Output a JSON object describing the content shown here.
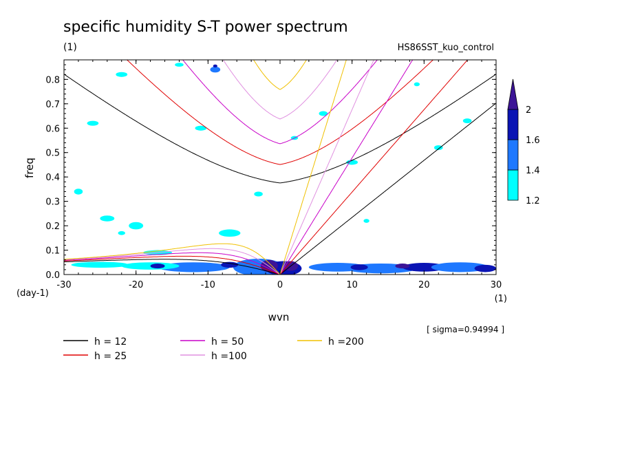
{
  "chart_data": {
    "type": "heatmap",
    "title": "specific humidity S-T power spectrum",
    "subtitle_left": "(1)",
    "subtitle_right": "HS86SST_kuo_control",
    "xlabel": "wvn",
    "ylabel": "freq",
    "x_unit": "(1)",
    "y_unit": "(day-1)",
    "xlim": [
      -30,
      30
    ],
    "ylim": [
      0,
      0.88
    ],
    "x_ticks": [
      -30,
      -20,
      -10,
      0,
      10,
      20,
      30
    ],
    "x_tick_labels": [
      "-30",
      "-20",
      "-10",
      "0",
      "10",
      "20",
      "30"
    ],
    "y_ticks": [
      0,
      0.1,
      0.2,
      0.3,
      0.4,
      0.5,
      0.6,
      0.7,
      0.8
    ],
    "y_tick_labels": [
      "0.0",
      "0.1",
      "0.2",
      "0.3",
      "0.4",
      "0.5",
      "0.6",
      "0.7",
      "0.8"
    ],
    "sigma_label": "[ sigma=0.94994 ]",
    "colorbar": {
      "levels": [
        1.2,
        1.4,
        1.6,
        2
      ],
      "labels": [
        "1.2",
        "1.4",
        "1.6",
        "2"
      ],
      "colors": [
        "#00ffff",
        "#1e78ff",
        "#0a14b4",
        "#3c1496"
      ]
    },
    "shading_patches": [
      {
        "wvn": -3,
        "freq": 0.03,
        "rx": 3.5,
        "ry": 0.035,
        "level": 1
      },
      {
        "wvn": 0.5,
        "freq": 0.025,
        "rx": 2.5,
        "ry": 0.03,
        "level": 2
      },
      {
        "wvn": -1.5,
        "freq": 0.035,
        "rx": 1.2,
        "ry": 0.025,
        "level": 3
      },
      {
        "wvn": 1.5,
        "freq": 0.035,
        "rx": 1,
        "ry": 0.02,
        "level": 3
      },
      {
        "wvn": -12,
        "freq": 0.03,
        "rx": 5,
        "ry": 0.02,
        "level": 1
      },
      {
        "wvn": -18,
        "freq": 0.035,
        "rx": 4,
        "ry": 0.015,
        "level": 0
      },
      {
        "wvn": -25,
        "freq": 0.04,
        "rx": 4,
        "ry": 0.012,
        "level": 0
      },
      {
        "wvn": -17,
        "freq": 0.035,
        "rx": 1,
        "ry": 0.01,
        "level": 2
      },
      {
        "wvn": -7,
        "freq": 0.04,
        "rx": 1.2,
        "ry": 0.012,
        "level": 2
      },
      {
        "wvn": 8,
        "freq": 0.03,
        "rx": 4,
        "ry": 0.018,
        "level": 1
      },
      {
        "wvn": 14,
        "freq": 0.025,
        "rx": 5,
        "ry": 0.02,
        "level": 1
      },
      {
        "wvn": 20,
        "freq": 0.03,
        "rx": 3,
        "ry": 0.018,
        "level": 2
      },
      {
        "wvn": 25,
        "freq": 0.03,
        "rx": 4,
        "ry": 0.02,
        "level": 1
      },
      {
        "wvn": 28.5,
        "freq": 0.025,
        "rx": 1.5,
        "ry": 0.015,
        "level": 2
      },
      {
        "wvn": 11,
        "freq": 0.03,
        "rx": 1.2,
        "ry": 0.012,
        "level": 2
      },
      {
        "wvn": 17,
        "freq": 0.035,
        "rx": 1,
        "ry": 0.01,
        "level": 3
      },
      {
        "wvn": -9,
        "freq": 0.84,
        "rx": 0.7,
        "ry": 0.012,
        "level": 1
      },
      {
        "wvn": -9,
        "freq": 0.855,
        "rx": 0.3,
        "ry": 0.006,
        "level": 2
      },
      {
        "wvn": -20,
        "freq": 0.2,
        "rx": 1,
        "ry": 0.015,
        "level": 0
      },
      {
        "wvn": -7,
        "freq": 0.17,
        "rx": 1.5,
        "ry": 0.015,
        "level": 0
      },
      {
        "wvn": -24,
        "freq": 0.23,
        "rx": 1,
        "ry": 0.012,
        "level": 0
      },
      {
        "wvn": 6,
        "freq": 0.66,
        "rx": 0.6,
        "ry": 0.01,
        "level": 0
      },
      {
        "wvn": 10,
        "freq": 0.46,
        "rx": 0.8,
        "ry": 0.01,
        "level": 0
      },
      {
        "wvn": 22,
        "freq": 0.52,
        "rx": 0.6,
        "ry": 0.01,
        "level": 0
      },
      {
        "wvn": -22,
        "freq": 0.82,
        "rx": 0.8,
        "ry": 0.01,
        "level": 0
      },
      {
        "wvn": -11,
        "freq": 0.6,
        "rx": 0.8,
        "ry": 0.01,
        "level": 0
      },
      {
        "wvn": -28,
        "freq": 0.34,
        "rx": 0.6,
        "ry": 0.012,
        "level": 0
      },
      {
        "wvn": -26,
        "freq": 0.62,
        "rx": 0.8,
        "ry": 0.01,
        "level": 0
      },
      {
        "wvn": 26,
        "freq": 0.63,
        "rx": 0.6,
        "ry": 0.01,
        "level": 0
      },
      {
        "wvn": -3,
        "freq": 0.33,
        "rx": 0.6,
        "ry": 0.01,
        "level": 0
      },
      {
        "wvn": -17,
        "freq": 0.09,
        "rx": 2,
        "ry": 0.01,
        "level": 0
      },
      {
        "wvn": -22,
        "freq": 0.17,
        "rx": 0.5,
        "ry": 0.008,
        "level": 0
      },
      {
        "wvn": 12,
        "freq": 0.22,
        "rx": 0.4,
        "ry": 0.008,
        "level": 0
      },
      {
        "wvn": 19,
        "freq": 0.78,
        "rx": 0.4,
        "ry": 0.008,
        "level": 0
      },
      {
        "wvn": -14,
        "freq": 0.86,
        "rx": 0.6,
        "ry": 0.008,
        "level": 0
      },
      {
        "wvn": 2,
        "freq": 0.56,
        "rx": 0.5,
        "ry": 0.008,
        "level": 0
      }
    ],
    "series": [
      {
        "name": "h = 12",
        "h": 12,
        "color": "#000000"
      },
      {
        "name": "h = 25",
        "h": 25,
        "color": "#e00000"
      },
      {
        "name": "h = 50",
        "h": 50,
        "color": "#c800c8"
      },
      {
        "name": "h =100",
        "h": 100,
        "color": "#e090e0"
      },
      {
        "name": "h =200",
        "h": 200,
        "color": "#f0c000"
      }
    ]
  }
}
